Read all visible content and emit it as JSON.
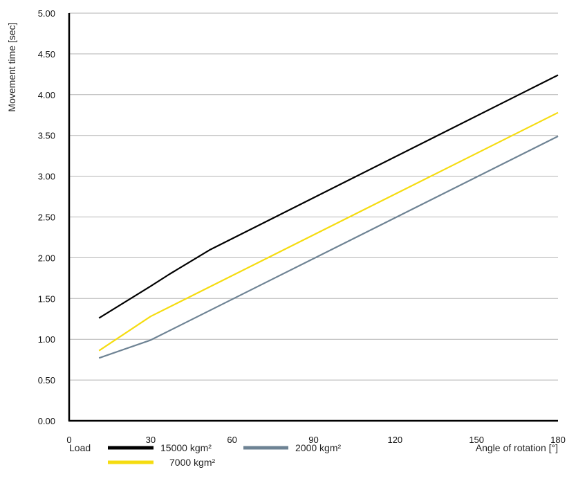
{
  "chart_data": {
    "type": "line",
    "title": "",
    "xlabel": "Angle of rotation [°]",
    "ylabel": "Movement time [sec]",
    "xlim": [
      0,
      180
    ],
    "ylim": [
      0,
      5
    ],
    "x_ticks": [
      "0",
      "30",
      "60",
      "90",
      "120",
      "150",
      "180"
    ],
    "x_tick_values": [
      0,
      30,
      60,
      90,
      120,
      150,
      180
    ],
    "y_ticks": [
      "0.00",
      "0.50",
      "1.00",
      "1.50",
      "2.00",
      "2.50",
      "3.00",
      "3.50",
      "4.00",
      "4.50",
      "5.00"
    ],
    "y_tick_values": [
      0,
      0.5,
      1,
      1.5,
      2,
      2.5,
      3,
      3.5,
      4,
      4.5,
      5
    ],
    "grid": "horizontal",
    "legend_title": "Load",
    "legend_position": "bottom",
    "series": [
      {
        "name": "15000 kgm²",
        "color": "#000000",
        "x": [
          11,
          30,
          37,
          52,
          180
        ],
        "y": [
          1.26,
          1.65,
          1.8,
          2.1,
          4.24
        ]
      },
      {
        "name": "7000 kgm²",
        "color": "#f5dc10",
        "x": [
          11,
          30,
          180
        ],
        "y": [
          0.86,
          1.28,
          3.78
        ]
      },
      {
        "name": "2000 kgm²",
        "color": "#6e8394",
        "x": [
          11,
          30,
          180
        ],
        "y": [
          0.77,
          0.99,
          3.49
        ]
      }
    ]
  }
}
